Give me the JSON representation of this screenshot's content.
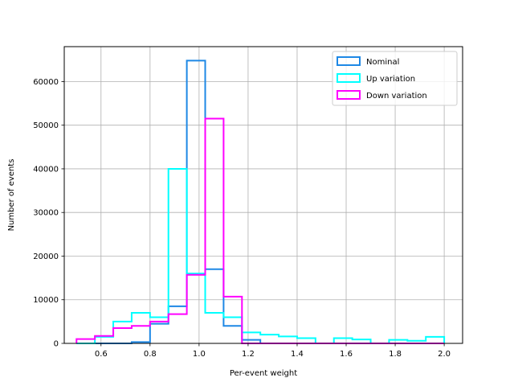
{
  "chart_data": {
    "type": "histogram",
    "xlabel": "Per-event weight",
    "ylabel": "Number of events",
    "xlim": [
      0.45,
      2.075
    ],
    "ylim": [
      0,
      68000
    ],
    "xticks": [
      0.6,
      0.8,
      1.0,
      1.2,
      1.4,
      1.6,
      1.8,
      2.0
    ],
    "xtick_labels": [
      "0.6",
      "0.8",
      "1.0",
      "1.2",
      "1.4",
      "1.6",
      "1.8",
      "2.0"
    ],
    "yticks": [
      0,
      10000,
      20000,
      30000,
      40000,
      50000,
      60000
    ],
    "ytick_labels": [
      "0",
      "10000",
      "20000",
      "30000",
      "40000",
      "50000",
      "60000"
    ],
    "grid": true,
    "legend_position": "upper-right",
    "bin_edges": [
      0.5,
      0.575,
      0.65,
      0.725,
      0.8,
      0.875,
      0.95,
      1.025,
      1.1,
      1.175,
      1.25,
      1.325,
      1.4,
      1.475,
      1.55,
      1.625,
      1.7,
      1.775,
      1.85,
      1.925,
      2.0
    ],
    "series": [
      {
        "name": "Nominal",
        "color": "#1e88e5",
        "values": [
          0,
          0,
          0,
          300,
          4500,
          8500,
          64800,
          17000,
          4000,
          800,
          0,
          0,
          0,
          0,
          0,
          0,
          0,
          0,
          0,
          0
        ]
      },
      {
        "name": "Up variation",
        "color": "#00ffff",
        "values": [
          0,
          1500,
          5000,
          7000,
          6000,
          40000,
          16000,
          7000,
          6000,
          2500,
          2000,
          1600,
          1200,
          0,
          1200,
          900,
          0,
          800,
          600,
          1500
        ]
      },
      {
        "name": "Down variation",
        "color": "#ff00ff",
        "values": [
          1000,
          1700,
          3500,
          4000,
          5000,
          6700,
          15700,
          51500,
          10700,
          0,
          0,
          0,
          0,
          0,
          0,
          0,
          0,
          0,
          0,
          0
        ]
      }
    ]
  }
}
